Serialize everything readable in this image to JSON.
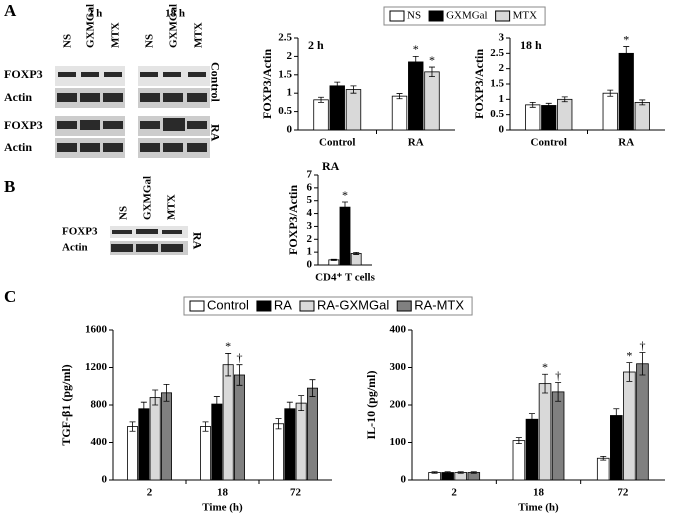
{
  "panel_labels": [
    "A",
    "B",
    "C"
  ],
  "blots": {
    "A": {
      "times": [
        "2 h",
        "18 h"
      ],
      "lanes": [
        "NS",
        "GXMGal",
        "MTX"
      ],
      "rows": [
        "FOXP3",
        "Actin",
        "FOXP3",
        "Actin"
      ],
      "conditions": [
        "Control",
        "RA"
      ]
    },
    "B": {
      "lanes": [
        "NS",
        "GXMGal",
        "MTX"
      ],
      "rows": [
        "FOXP3",
        "Actin"
      ],
      "condition": "RA"
    }
  },
  "chart_data": [
    {
      "type": "bar",
      "title": "2 h",
      "y_label": "FOXP3/Actin",
      "categories": [
        "Control",
        "RA"
      ],
      "ylim": [
        0,
        2.5
      ],
      "yticks": [
        0,
        0.5,
        1,
        1.5,
        2,
        2.5
      ],
      "series": [
        {
          "name": "NS",
          "color": "#ffffff",
          "values": [
            0.82,
            0.92
          ],
          "errors": [
            0.07,
            0.07
          ],
          "markers": [
            null,
            null
          ]
        },
        {
          "name": "GXMGal",
          "color": "#000000",
          "values": [
            1.2,
            1.85
          ],
          "errors": [
            0.1,
            0.15
          ],
          "markers": [
            null,
            "*"
          ]
        },
        {
          "name": "MTX",
          "color": "#d9d9d9",
          "values": [
            1.1,
            1.58
          ],
          "errors": [
            0.1,
            0.13
          ],
          "markers": [
            null,
            "*"
          ]
        }
      ]
    },
    {
      "type": "bar",
      "title": "18 h",
      "y_label": "FOXP3/Actin",
      "categories": [
        "Control",
        "RA"
      ],
      "ylim": [
        0,
        3
      ],
      "yticks": [
        0,
        0.5,
        1,
        1.5,
        2,
        2.5,
        3
      ],
      "series": [
        {
          "color": "#ffffff",
          "values": [
            0.82,
            1.2
          ],
          "errors": [
            0.08,
            0.1
          ],
          "markers": [
            null,
            null
          ]
        },
        {
          "color": "#000000",
          "values": [
            0.8,
            2.5
          ],
          "errors": [
            0.07,
            0.22
          ],
          "markers": [
            null,
            "*"
          ]
        },
        {
          "color": "#d9d9d9",
          "values": [
            1.0,
            0.9
          ],
          "errors": [
            0.08,
            0.08
          ],
          "markers": [
            null,
            null
          ]
        }
      ]
    },
    {
      "type": "bar",
      "title": "RA",
      "y_label": "FOXP3/Actin",
      "categories": [
        "CD4⁺ T cells"
      ],
      "ylim": [
        0,
        7
      ],
      "yticks": [
        0,
        1,
        2,
        3,
        4,
        5,
        6,
        7
      ],
      "series": [
        {
          "color": "#ffffff",
          "values": [
            0.4
          ],
          "errors": [
            0.05
          ],
          "markers": [
            null
          ]
        },
        {
          "color": "#000000",
          "values": [
            4.5
          ],
          "errors": [
            0.4
          ],
          "markers": [
            "*"
          ]
        },
        {
          "color": "#d9d9d9",
          "values": [
            0.9
          ],
          "errors": [
            0.08
          ],
          "markers": [
            null
          ]
        }
      ]
    },
    {
      "type": "bar",
      "y_label": "TGF-β1 (pg/ml)",
      "x_label": "Time (h)",
      "categories": [
        "2",
        "18",
        "72"
      ],
      "ylim": [
        0,
        1600
      ],
      "yticks": [
        0,
        400,
        800,
        1200,
        1600
      ],
      "series": [
        {
          "name": "Control",
          "color": "#ffffff",
          "values": [
            570,
            570,
            600
          ],
          "errors": [
            50,
            50,
            55
          ],
          "markers": [
            null,
            null,
            null
          ]
        },
        {
          "name": "RA",
          "color": "#000000",
          "values": [
            760,
            810,
            760
          ],
          "errors": [
            70,
            80,
            70
          ],
          "markers": [
            null,
            null,
            null
          ]
        },
        {
          "name": "RA-GXMGal",
          "color": "#d9d9d9",
          "values": [
            880,
            1230,
            820
          ],
          "errors": [
            80,
            120,
            80
          ],
          "markers": [
            null,
            "*",
            null
          ]
        },
        {
          "name": "RA-MTX",
          "color": "#808080",
          "values": [
            930,
            1120,
            980
          ],
          "errors": [
            90,
            110,
            90
          ],
          "markers": [
            null,
            "†",
            null
          ]
        }
      ]
    },
    {
      "type": "bar",
      "y_label": "IL-10 (pg/ml)",
      "x_label": "Time (h)",
      "categories": [
        "2",
        "18",
        "72"
      ],
      "ylim": [
        0,
        400
      ],
      "yticks": [
        0,
        100,
        200,
        300,
        400
      ],
      "series": [
        {
          "color": "#ffffff",
          "values": [
            20,
            105,
            58
          ],
          "errors": [
            2,
            8,
            5
          ],
          "markers": [
            null,
            null,
            null
          ]
        },
        {
          "color": "#000000",
          "values": [
            20,
            162,
            172
          ],
          "errors": [
            2,
            15,
            18
          ],
          "markers": [
            null,
            null,
            null
          ]
        },
        {
          "color": "#d9d9d9",
          "values": [
            20,
            257,
            288
          ],
          "errors": [
            2,
            25,
            25
          ],
          "markers": [
            null,
            "*",
            "*"
          ]
        },
        {
          "color": "#808080",
          "values": [
            20,
            235,
            310
          ],
          "errors": [
            2,
            25,
            30
          ],
          "markers": [
            null,
            "†",
            "†"
          ]
        }
      ]
    }
  ]
}
